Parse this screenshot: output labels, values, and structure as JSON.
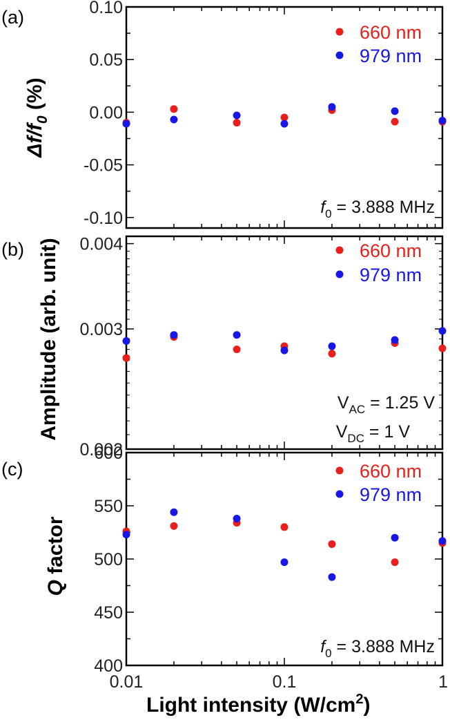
{
  "colors": {
    "series1": "#e8201c",
    "series2": "#1818e6"
  },
  "xaxis": {
    "label_main": "Light intensity (W/cm",
    "label_sup": "2",
    "label_close": ")",
    "ticklabels": [
      "0.01",
      "0.1",
      "1"
    ],
    "tickvalues": [
      0.01,
      0.1,
      1
    ]
  },
  "ylabels": {
    "a": {
      "delta": "Δf/f",
      "sub": "0",
      "unit": " (%)"
    },
    "b": "Amplitude (arb. unit)",
    "c": {
      "q": "Q",
      "rest": " factor"
    }
  },
  "chart_data": [
    {
      "type": "scatter",
      "panel": "(a)",
      "xscale": "log",
      "xlim": [
        0.01,
        1
      ],
      "ylim": [
        -0.11,
        0.1
      ],
      "yticks": [
        -0.1,
        -0.05,
        0,
        0.05,
        0.1
      ],
      "yticklabels": [
        "-0.10",
        "-0.05",
        "0.00",
        "0.05",
        "0.10"
      ],
      "legend": [
        "660 nm",
        "979 nm"
      ],
      "annotation": {
        "prefix": "f",
        "sub": "0",
        "suffix": " = 3.888 MHz"
      },
      "series": [
        {
          "name": "660 nm",
          "x": [
            0.01,
            0.02,
            0.05,
            0.1,
            0.2,
            0.5,
            1
          ],
          "y": [
            -0.01,
            0.003,
            -0.01,
            -0.005,
            0.002,
            -0.009,
            -0.009
          ]
        },
        {
          "name": "979 nm",
          "x": [
            0.01,
            0.02,
            0.05,
            0.1,
            0.2,
            0.5,
            1
          ],
          "y": [
            -0.011,
            -0.007,
            -0.003,
            -0.011,
            0.005,
            0.001,
            -0.008
          ]
        }
      ]
    },
    {
      "type": "scatter",
      "panel": "(b)",
      "xscale": "log",
      "yscale": "log",
      "xlim": [
        0.01,
        1
      ],
      "ylim": [
        0.002,
        0.0041
      ],
      "yticks": [
        0.002,
        0.003,
        0.004
      ],
      "yticklabels": [
        "0.002",
        "0.003",
        "0.004"
      ],
      "legend": [
        "660 nm",
        "979 nm"
      ],
      "annotations": [
        {
          "prefix": "V",
          "sub": "AC",
          "suffix": " = 1.25 V"
        },
        {
          "prefix": "V",
          "sub": "DC",
          "suffix": " = 1 V"
        }
      ],
      "series": [
        {
          "name": "660 nm",
          "x": [
            0.01,
            0.02,
            0.05,
            0.1,
            0.2,
            0.5,
            1
          ],
          "y": [
            0.00272,
            0.00292,
            0.0028,
            0.00283,
            0.00276,
            0.00286,
            0.00281
          ]
        },
        {
          "name": "979 nm",
          "x": [
            0.01,
            0.02,
            0.05,
            0.1,
            0.2,
            0.5,
            1
          ],
          "y": [
            0.00288,
            0.00294,
            0.00294,
            0.00279,
            0.00283,
            0.00289,
            0.00298
          ]
        }
      ]
    },
    {
      "type": "scatter",
      "panel": "(c)",
      "xscale": "log",
      "xlim": [
        0.01,
        1
      ],
      "ylim": [
        400,
        600
      ],
      "yticks": [
        400,
        450,
        500,
        550,
        600
      ],
      "yticklabels": [
        "400",
        "450",
        "500",
        "550",
        "600"
      ],
      "legend": [
        "660 nm",
        "979 nm"
      ],
      "annotation": {
        "prefix": "f",
        "sub": "0",
        "suffix": " = 3.888 MHz"
      },
      "series": [
        {
          "name": "660 nm",
          "x": [
            0.01,
            0.02,
            0.05,
            0.1,
            0.2,
            0.5,
            1
          ],
          "y": [
            526,
            531,
            534,
            530,
            514,
            497,
            515
          ]
        },
        {
          "name": "979 nm",
          "x": [
            0.01,
            0.02,
            0.05,
            0.1,
            0.2,
            0.5,
            1
          ],
          "y": [
            523,
            544,
            538,
            497,
            483,
            520,
            517
          ]
        }
      ]
    }
  ]
}
